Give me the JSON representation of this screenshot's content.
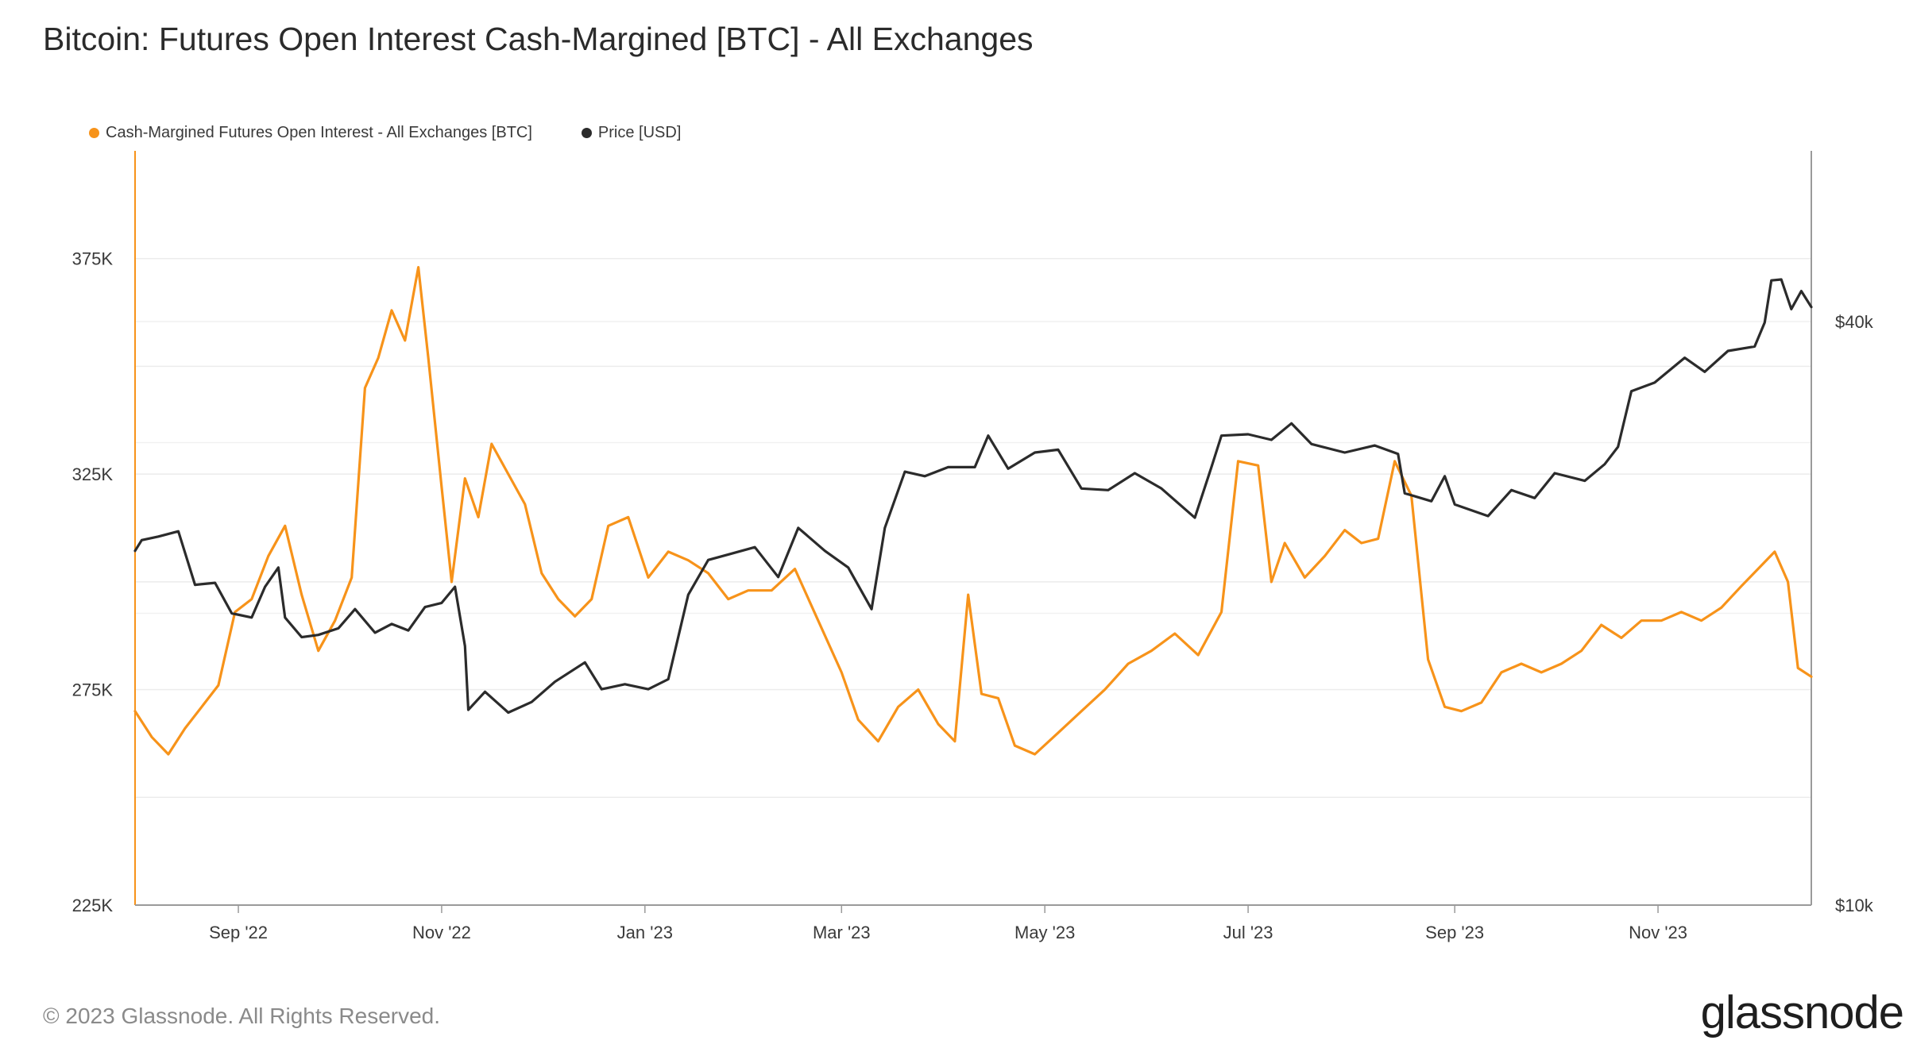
{
  "title": "Bitcoin: Futures Open Interest Cash-Margined [BTC] - All Exchanges",
  "footer": {
    "copyright": "© 2023 Glassnode. All Rights Reserved.",
    "brand": "glassnode"
  },
  "colors": {
    "open_interest": "#f7931a",
    "price": "#2b2b2b",
    "grid": "#ececec"
  },
  "chart_data": {
    "type": "line",
    "title": "Bitcoin: Futures Open Interest Cash-Margined [BTC] - All Exchanges",
    "legend_placement": "top-left",
    "grid": true,
    "x_range": [
      "2022-08-01",
      "2023-12-17"
    ],
    "x_ticks": [
      {
        "date": "2022-09-01",
        "label": "Sep '22"
      },
      {
        "date": "2022-11-01",
        "label": "Nov '22"
      },
      {
        "date": "2023-01-01",
        "label": "Jan '23"
      },
      {
        "date": "2023-03-01",
        "label": "Mar '23"
      },
      {
        "date": "2023-05-01",
        "label": "May '23"
      },
      {
        "date": "2023-07-01",
        "label": "Jul '23"
      },
      {
        "date": "2023-09-01",
        "label": "Sep '23"
      },
      {
        "date": "2023-11-01",
        "label": "Nov '23"
      }
    ],
    "y_left": {
      "label": "",
      "range": [
        225000,
        400000
      ],
      "ticks": [
        {
          "value": 225000,
          "label": "225K"
        },
        {
          "value": 275000,
          "label": "275K"
        },
        {
          "value": 325000,
          "label": "325K"
        },
        {
          "value": 375000,
          "label": "375K"
        }
      ]
    },
    "y_right": {
      "label": "",
      "scale": "log",
      "range": [
        10000,
        60000
      ],
      "ticks": [
        {
          "value": 10000,
          "label": "$10k"
        },
        {
          "value": 40000,
          "label": "$40k"
        }
      ]
    },
    "series": [
      {
        "name": "Cash-Margined Futures Open Interest - All Exchanges [BTC]",
        "axis": "left",
        "color": "#f7931a",
        "points": [
          [
            "2022-08-01",
            270000
          ],
          [
            "2022-08-06",
            264000
          ],
          [
            "2022-08-11",
            260000
          ],
          [
            "2022-08-16",
            266000
          ],
          [
            "2022-08-21",
            271000
          ],
          [
            "2022-08-26",
            276000
          ],
          [
            "2022-08-31",
            293000
          ],
          [
            "2022-09-05",
            296000
          ],
          [
            "2022-09-10",
            306000
          ],
          [
            "2022-09-15",
            313000
          ],
          [
            "2022-09-20",
            297000
          ],
          [
            "2022-09-25",
            284000
          ],
          [
            "2022-09-30",
            291000
          ],
          [
            "2022-10-05",
            301000
          ],
          [
            "2022-10-09",
            345000
          ],
          [
            "2022-10-13",
            352000
          ],
          [
            "2022-10-17",
            363000
          ],
          [
            "2022-10-21",
            356000
          ],
          [
            "2022-10-25",
            373000
          ],
          [
            "2022-10-28",
            352000
          ],
          [
            "2022-11-01",
            322000
          ],
          [
            "2022-11-04",
            300000
          ],
          [
            "2022-11-08",
            324000
          ],
          [
            "2022-11-12",
            315000
          ],
          [
            "2022-11-16",
            332000
          ],
          [
            "2022-11-21",
            325000
          ],
          [
            "2022-11-26",
            318000
          ],
          [
            "2022-12-01",
            302000
          ],
          [
            "2022-12-06",
            296000
          ],
          [
            "2022-12-11",
            292000
          ],
          [
            "2022-12-16",
            296000
          ],
          [
            "2022-12-21",
            313000
          ],
          [
            "2022-12-27",
            315000
          ],
          [
            "2023-01-02",
            301000
          ],
          [
            "2023-01-08",
            307000
          ],
          [
            "2023-01-14",
            305000
          ],
          [
            "2023-01-20",
            302000
          ],
          [
            "2023-01-26",
            296000
          ],
          [
            "2023-02-01",
            298000
          ],
          [
            "2023-02-08",
            298000
          ],
          [
            "2023-02-15",
            303000
          ],
          [
            "2023-02-22",
            291000
          ],
          [
            "2023-03-01",
            279000
          ],
          [
            "2023-03-06",
            268000
          ],
          [
            "2023-03-12",
            263000
          ],
          [
            "2023-03-18",
            271000
          ],
          [
            "2023-03-24",
            275000
          ],
          [
            "2023-03-30",
            267000
          ],
          [
            "2023-04-04",
            263000
          ],
          [
            "2023-04-08",
            297000
          ],
          [
            "2023-04-12",
            274000
          ],
          [
            "2023-04-17",
            273000
          ],
          [
            "2023-04-22",
            262000
          ],
          [
            "2023-04-28",
            260000
          ],
          [
            "2023-05-05",
            265000
          ],
          [
            "2023-05-12",
            270000
          ],
          [
            "2023-05-19",
            275000
          ],
          [
            "2023-05-26",
            281000
          ],
          [
            "2023-06-02",
            284000
          ],
          [
            "2023-06-09",
            288000
          ],
          [
            "2023-06-16",
            283000
          ],
          [
            "2023-06-23",
            293000
          ],
          [
            "2023-06-28",
            328000
          ],
          [
            "2023-07-04",
            327000
          ],
          [
            "2023-07-08",
            300000
          ],
          [
            "2023-07-12",
            309000
          ],
          [
            "2023-07-18",
            301000
          ],
          [
            "2023-07-24",
            306000
          ],
          [
            "2023-07-30",
            312000
          ],
          [
            "2023-08-04",
            309000
          ],
          [
            "2023-08-09",
            310000
          ],
          [
            "2023-08-14",
            328000
          ],
          [
            "2023-08-19",
            320000
          ],
          [
            "2023-08-24",
            282000
          ],
          [
            "2023-08-29",
            271000
          ],
          [
            "2023-09-03",
            270000
          ],
          [
            "2023-09-09",
            272000
          ],
          [
            "2023-09-15",
            279000
          ],
          [
            "2023-09-21",
            281000
          ],
          [
            "2023-09-27",
            279000
          ],
          [
            "2023-10-03",
            281000
          ],
          [
            "2023-10-09",
            284000
          ],
          [
            "2023-10-15",
            290000
          ],
          [
            "2023-10-21",
            287000
          ],
          [
            "2023-10-27",
            291000
          ],
          [
            "2023-11-02",
            291000
          ],
          [
            "2023-11-08",
            293000
          ],
          [
            "2023-11-14",
            291000
          ],
          [
            "2023-11-20",
            294000
          ],
          [
            "2023-11-26",
            299000
          ],
          [
            "2023-12-01",
            303000
          ],
          [
            "2023-12-06",
            307000
          ],
          [
            "2023-12-10",
            300000
          ],
          [
            "2023-12-13",
            280000
          ],
          [
            "2023-12-17",
            278000
          ]
        ]
      },
      {
        "name": "Price [USD]",
        "axis": "right",
        "color": "#2b2b2b",
        "points": [
          [
            "2022-08-01",
            23200
          ],
          [
            "2022-08-03",
            23800
          ],
          [
            "2022-08-08",
            24000
          ],
          [
            "2022-08-14",
            24300
          ],
          [
            "2022-08-19",
            21400
          ],
          [
            "2022-08-25",
            21500
          ],
          [
            "2022-08-30",
            20000
          ],
          [
            "2022-09-05",
            19800
          ],
          [
            "2022-09-09",
            21300
          ],
          [
            "2022-09-13",
            22300
          ],
          [
            "2022-09-15",
            19800
          ],
          [
            "2022-09-20",
            18900
          ],
          [
            "2022-09-25",
            19000
          ],
          [
            "2022-10-01",
            19300
          ],
          [
            "2022-10-06",
            20200
          ],
          [
            "2022-10-12",
            19100
          ],
          [
            "2022-10-17",
            19500
          ],
          [
            "2022-10-22",
            19200
          ],
          [
            "2022-10-27",
            20300
          ],
          [
            "2022-11-01",
            20500
          ],
          [
            "2022-11-05",
            21300
          ],
          [
            "2022-11-08",
            18500
          ],
          [
            "2022-11-09",
            15900
          ],
          [
            "2022-11-14",
            16600
          ],
          [
            "2022-11-21",
            15800
          ],
          [
            "2022-11-28",
            16200
          ],
          [
            "2022-12-05",
            17000
          ],
          [
            "2022-12-14",
            17800
          ],
          [
            "2022-12-19",
            16700
          ],
          [
            "2022-12-26",
            16900
          ],
          [
            "2023-01-02",
            16700
          ],
          [
            "2023-01-08",
            17100
          ],
          [
            "2023-01-14",
            20900
          ],
          [
            "2023-01-20",
            22700
          ],
          [
            "2023-01-26",
            23000
          ],
          [
            "2023-02-03",
            23400
          ],
          [
            "2023-02-10",
            21800
          ],
          [
            "2023-02-16",
            24500
          ],
          [
            "2023-02-24",
            23200
          ],
          [
            "2023-03-03",
            22300
          ],
          [
            "2023-03-10",
            20200
          ],
          [
            "2023-03-14",
            24500
          ],
          [
            "2023-03-20",
            28000
          ],
          [
            "2023-03-26",
            27700
          ],
          [
            "2023-04-02",
            28300
          ],
          [
            "2023-04-10",
            28300
          ],
          [
            "2023-04-14",
            30500
          ],
          [
            "2023-04-20",
            28200
          ],
          [
            "2023-04-28",
            29300
          ],
          [
            "2023-05-05",
            29500
          ],
          [
            "2023-05-12",
            26900
          ],
          [
            "2023-05-20",
            26800
          ],
          [
            "2023-05-28",
            27900
          ],
          [
            "2023-06-05",
            26900
          ],
          [
            "2023-06-15",
            25100
          ],
          [
            "2023-06-20",
            28300
          ],
          [
            "2023-06-23",
            30500
          ],
          [
            "2023-07-01",
            30600
          ],
          [
            "2023-07-08",
            30200
          ],
          [
            "2023-07-14",
            31400
          ],
          [
            "2023-07-20",
            29900
          ],
          [
            "2023-07-30",
            29300
          ],
          [
            "2023-08-08",
            29800
          ],
          [
            "2023-08-15",
            29200
          ],
          [
            "2023-08-17",
            26600
          ],
          [
            "2023-08-25",
            26100
          ],
          [
            "2023-08-29",
            27700
          ],
          [
            "2023-09-01",
            25900
          ],
          [
            "2023-09-11",
            25200
          ],
          [
            "2023-09-18",
            26800
          ],
          [
            "2023-09-25",
            26300
          ],
          [
            "2023-10-01",
            27900
          ],
          [
            "2023-10-10",
            27400
          ],
          [
            "2023-10-16",
            28500
          ],
          [
            "2023-10-20",
            29700
          ],
          [
            "2023-10-24",
            33900
          ],
          [
            "2023-10-31",
            34600
          ],
          [
            "2023-11-09",
            36700
          ],
          [
            "2023-11-15",
            35500
          ],
          [
            "2023-11-22",
            37300
          ],
          [
            "2023-11-30",
            37700
          ],
          [
            "2023-12-03",
            39900
          ],
          [
            "2023-12-05",
            44100
          ],
          [
            "2023-12-08",
            44200
          ],
          [
            "2023-12-11",
            41200
          ],
          [
            "2023-12-14",
            43000
          ],
          [
            "2023-12-17",
            41400
          ]
        ]
      }
    ]
  }
}
